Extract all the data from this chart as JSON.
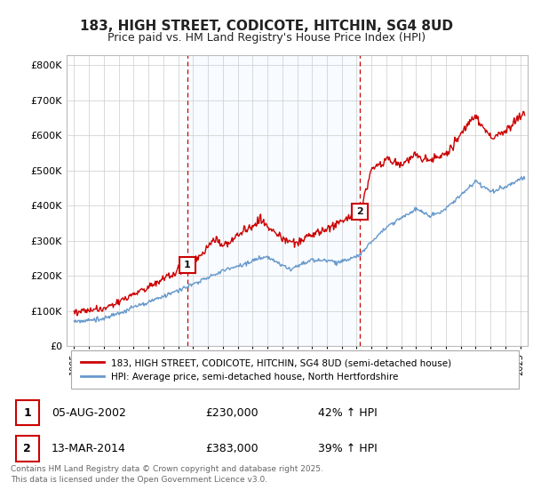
{
  "title": "183, HIGH STREET, CODICOTE, HITCHIN, SG4 8UD",
  "subtitle": "Price paid vs. HM Land Registry's House Price Index (HPI)",
  "ylabel_ticks": [
    "£0",
    "£100K",
    "£200K",
    "£300K",
    "£400K",
    "£500K",
    "£600K",
    "£700K",
    "£800K"
  ],
  "ytick_values": [
    0,
    100000,
    200000,
    300000,
    400000,
    500000,
    600000,
    700000,
    800000
  ],
  "ylim": [
    0,
    830000
  ],
  "xlim_start": 1994.5,
  "xlim_end": 2025.5,
  "red_line_color": "#cc0000",
  "blue_line_color": "#6699cc",
  "marker1_x": 2002.6,
  "marker1_y": 230000,
  "marker2_x": 2014.2,
  "marker2_y": 383000,
  "vline1_x": 2002.6,
  "vline2_x": 2014.2,
  "vline_color": "#cc0000",
  "fill_color": "#ddeeff",
  "legend_entry1": "183, HIGH STREET, CODICOTE, HITCHIN, SG4 8UD (semi-detached house)",
  "legend_entry2": "HPI: Average price, semi-detached house, North Hertfordshire",
  "table_row1": [
    "1",
    "05-AUG-2002",
    "£230,000",
    "42% ↑ HPI"
  ],
  "table_row2": [
    "2",
    "13-MAR-2014",
    "£383,000",
    "39% ↑ HPI"
  ],
  "footer": "Contains HM Land Registry data © Crown copyright and database right 2025.\nThis data is licensed under the Open Government Licence v3.0.",
  "background_color": "#ffffff",
  "plot_background": "#ffffff",
  "grid_color": "#cccccc",
  "title_fontsize": 11,
  "subtitle_fontsize": 9
}
